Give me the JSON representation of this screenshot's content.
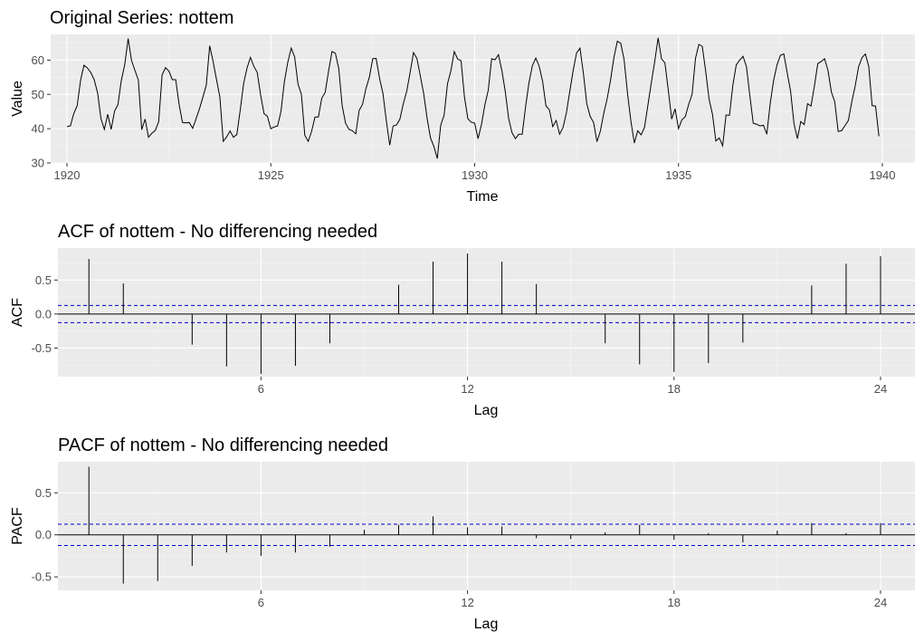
{
  "chart_data": [
    {
      "type": "line",
      "title": "Original Series: nottem",
      "xlabel": "Time",
      "ylabel": "Value",
      "xlim": [
        1919.6,
        1940.8
      ],
      "ylim": [
        30,
        67.5
      ],
      "x_ticks": [
        1920,
        1925,
        1930,
        1935,
        1940
      ],
      "y_ticks": [
        30,
        40,
        50,
        60
      ],
      "x_start": 1920,
      "x_step": 0.08333333,
      "colors": {
        "line": "#000000",
        "panel": "#ebebeb"
      },
      "values": [
        40.6,
        40.8,
        44.4,
        46.7,
        54.1,
        58.5,
        57.7,
        56.4,
        54.3,
        50.5,
        42.9,
        39.8,
        44.2,
        39.8,
        45.1,
        47.0,
        54.1,
        58.7,
        66.3,
        59.9,
        57.0,
        54.2,
        39.7,
        42.8,
        37.5,
        38.7,
        39.5,
        42.1,
        55.7,
        57.8,
        56.8,
        54.3,
        54.3,
        47.1,
        41.8,
        41.7,
        41.8,
        40.1,
        42.9,
        45.8,
        49.2,
        52.7,
        64.2,
        59.6,
        54.4,
        49.2,
        36.3,
        37.6,
        39.3,
        37.5,
        38.3,
        45.5,
        53.2,
        57.7,
        60.8,
        58.2,
        56.4,
        49.8,
        44.4,
        43.6,
        40.0,
        40.5,
        40.8,
        45.1,
        53.8,
        59.4,
        63.5,
        61.0,
        53.0,
        50.0,
        38.1,
        36.3,
        39.2,
        43.4,
        43.4,
        48.9,
        50.6,
        56.8,
        62.5,
        62.0,
        57.5,
        46.7,
        41.6,
        39.8,
        39.4,
        38.5,
        45.3,
        47.1,
        51.7,
        55.0,
        60.4,
        60.5,
        54.7,
        50.3,
        42.3,
        35.2,
        40.8,
        41.1,
        42.8,
        47.3,
        50.9,
        56.4,
        62.2,
        60.5,
        55.4,
        50.2,
        43.0,
        37.3,
        34.8,
        31.3,
        41.0,
        43.9,
        53.1,
        56.9,
        62.5,
        60.3,
        59.8,
        49.2,
        42.9,
        41.9,
        41.6,
        37.1,
        41.2,
        46.9,
        51.2,
        60.4,
        60.1,
        61.6,
        57.0,
        50.9,
        43.0,
        38.8,
        37.1,
        38.4,
        38.4,
        46.5,
        53.5,
        58.4,
        60.6,
        58.2,
        53.8,
        46.6,
        45.5,
        40.6,
        42.4,
        38.4,
        40.3,
        44.6,
        50.9,
        57.0,
        62.1,
        63.5,
        56.2,
        47.3,
        43.6,
        41.8,
        36.2,
        39.3,
        44.5,
        48.7,
        54.2,
        60.8,
        65.5,
        64.9,
        60.1,
        50.2,
        42.1,
        35.8,
        39.4,
        38.2,
        40.4,
        46.9,
        53.4,
        59.6,
        66.5,
        60.4,
        59.2,
        51.2,
        42.8,
        45.8,
        40.0,
        42.6,
        43.5,
        47.1,
        50.0,
        60.5,
        64.6,
        64.0,
        56.8,
        48.6,
        44.2,
        36.4,
        37.3,
        35.0,
        44.0,
        43.9,
        52.7,
        58.6,
        60.0,
        61.1,
        58.1,
        49.6,
        41.6,
        41.3,
        40.8,
        41.0,
        38.4,
        47.4,
        54.1,
        58.6,
        61.4,
        61.8,
        56.3,
        50.9,
        41.4,
        37.1,
        42.1,
        41.2,
        47.3,
        46.6,
        52.4,
        59.0,
        59.6,
        60.4,
        57.0,
        50.7,
        47.8,
        39.2,
        39.4,
        40.9,
        42.4,
        47.8,
        52.4,
        58.0,
        60.7,
        61.8,
        58.2,
        46.7,
        46.6,
        37.8
      ]
    },
    {
      "type": "bar",
      "title": "ACF of nottem - No differencing needed",
      "xlabel": "Lag",
      "ylabel": "ACF",
      "xlim": [
        0.1,
        25.0
      ],
      "ylim": [
        -0.92,
        0.97
      ],
      "x_ticks": [
        6,
        12,
        18,
        24
      ],
      "y_ticks": [
        -0.5,
        0.0,
        0.5
      ],
      "y_tick_labels": [
        "-0.5",
        "0.0",
        "0.5"
      ],
      "conf_limit": 0.126,
      "colors": {
        "spike": "#000000",
        "ci": "#0000cc",
        "panel": "#ebebeb"
      },
      "lags": [
        1,
        2,
        3,
        4,
        5,
        6,
        7,
        8,
        9,
        10,
        11,
        12,
        13,
        14,
        15,
        16,
        17,
        18,
        19,
        20,
        21,
        22,
        23,
        24
      ],
      "values": [
        0.81,
        0.45,
        0.0,
        -0.45,
        -0.77,
        -0.88,
        -0.76,
        -0.43,
        0.0,
        0.43,
        0.77,
        0.89,
        0.77,
        0.44,
        0.0,
        -0.43,
        -0.74,
        -0.85,
        -0.72,
        -0.42,
        0.0,
        0.42,
        0.74,
        0.85
      ]
    },
    {
      "type": "bar",
      "title": "PACF of nottem - No differencing needed",
      "xlabel": "Lag",
      "ylabel": "PACF",
      "xlim": [
        0.1,
        25.0
      ],
      "ylim": [
        -0.66,
        0.87
      ],
      "x_ticks": [
        6,
        12,
        18,
        24
      ],
      "y_ticks": [
        -0.5,
        0.0,
        0.5
      ],
      "y_tick_labels": [
        "-0.5",
        "0.0",
        "0.5"
      ],
      "conf_limit": 0.126,
      "colors": {
        "spike": "#000000",
        "ci": "#0000cc",
        "panel": "#ebebeb"
      },
      "lags": [
        1,
        2,
        3,
        4,
        5,
        6,
        7,
        8,
        9,
        10,
        11,
        12,
        13,
        14,
        15,
        16,
        17,
        18,
        19,
        20,
        21,
        22,
        23,
        24
      ],
      "values": [
        0.81,
        -0.58,
        -0.55,
        -0.37,
        -0.21,
        -0.25,
        -0.21,
        -0.14,
        0.06,
        0.12,
        0.22,
        0.09,
        0.1,
        -0.04,
        -0.05,
        0.03,
        0.12,
        -0.06,
        0.02,
        -0.09,
        0.05,
        0.14,
        0.02,
        0.14
      ]
    }
  ]
}
